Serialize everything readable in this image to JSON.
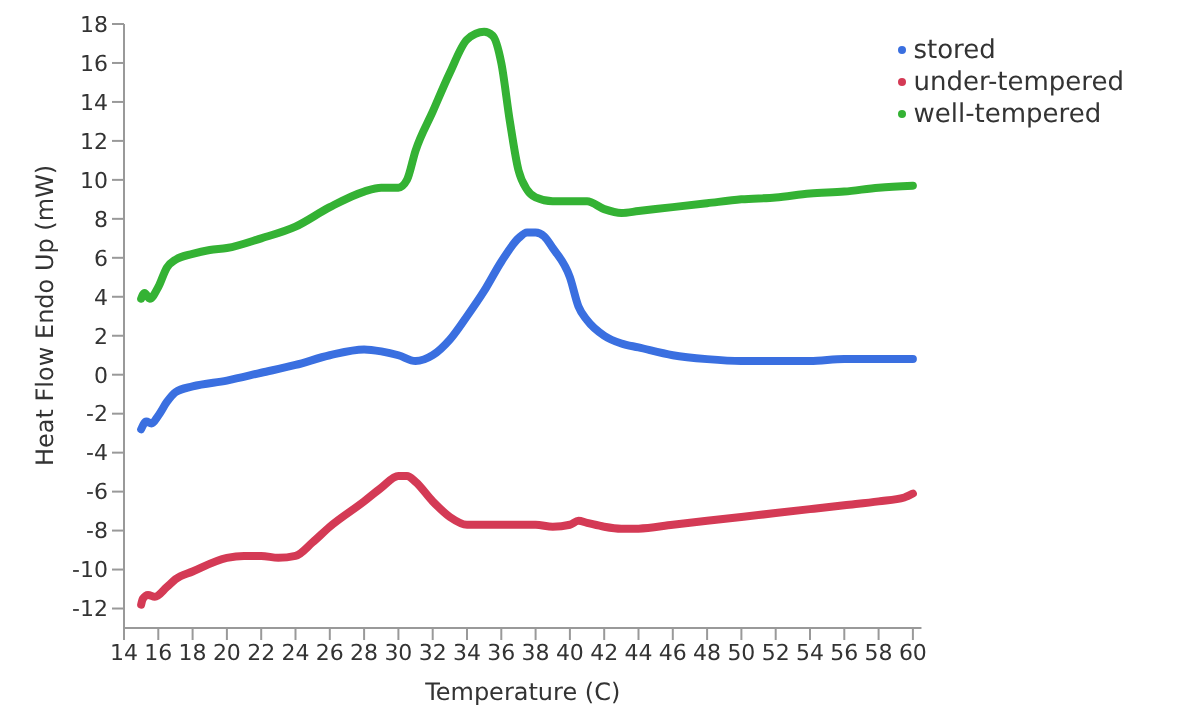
{
  "chart_data": {
    "type": "line",
    "xlabel": "Temperature (C)",
    "ylabel": "Heat Flow Endo Up (mW)",
    "xlim": [
      14,
      60.5
    ],
    "xticks": [
      14,
      16,
      18,
      20,
      22,
      24,
      26,
      28,
      30,
      32,
      34,
      36,
      38,
      40,
      42,
      44,
      46,
      48,
      50,
      52,
      54,
      56,
      58,
      60
    ],
    "ylim": [
      -13,
      18
    ],
    "yticks": [
      -12,
      -10,
      -8,
      -6,
      -4,
      -2,
      0,
      2,
      4,
      6,
      8,
      10,
      12,
      14,
      16,
      18
    ],
    "grid": false,
    "legend": "top right",
    "marker": "none",
    "line_style": "solid",
    "series": [
      {
        "name": "stored",
        "color": "#3a6fe0",
        "x": [
          15,
          15.3,
          15.6,
          16,
          16.5,
          17,
          18,
          20,
          22,
          24,
          26,
          28,
          29,
          30,
          31,
          32,
          33,
          34,
          35,
          36,
          37,
          37.5,
          38,
          38.5,
          39,
          40,
          40.5,
          41,
          42,
          43,
          44,
          46,
          48,
          50,
          52,
          54,
          56,
          58,
          60
        ],
        "values": [
          -2.8,
          -2.4,
          -2.5,
          -2.1,
          -1.4,
          -0.9,
          -0.6,
          -0.3,
          0.1,
          0.5,
          1.0,
          1.3,
          1.2,
          1.0,
          0.7,
          1.0,
          1.8,
          3.0,
          4.3,
          5.8,
          7.0,
          7.3,
          7.3,
          7.1,
          6.5,
          5.0,
          3.5,
          2.8,
          2.0,
          1.6,
          1.4,
          1.0,
          0.8,
          0.7,
          0.7,
          0.7,
          0.8,
          0.8,
          0.8
        ]
      },
      {
        "name": "under-tempered",
        "color": "#d43a55",
        "x": [
          15,
          15.1,
          15.4,
          15.8,
          16.5,
          17,
          18,
          20,
          21,
          22,
          23,
          24,
          25,
          26,
          28,
          29,
          30,
          30.5,
          31,
          32,
          33,
          34,
          36,
          38,
          39,
          40,
          40.5,
          41,
          42,
          43,
          44,
          46,
          48,
          50,
          52,
          54,
          56,
          58,
          59.5,
          60
        ],
        "values": [
          -11.8,
          -11.5,
          -11.3,
          -11.4,
          -10.9,
          -10.5,
          -10.1,
          -9.4,
          -9.3,
          -9.3,
          -9.4,
          -9.3,
          -8.6,
          -7.8,
          -6.5,
          -5.8,
          -5.2,
          -5.2,
          -5.5,
          -6.5,
          -7.3,
          -7.7,
          -7.7,
          -7.7,
          -7.8,
          -7.7,
          -7.5,
          -7.6,
          -7.8,
          -7.9,
          -7.9,
          -7.7,
          -7.5,
          -7.3,
          -7.1,
          -6.9,
          -6.7,
          -6.5,
          -6.3,
          -6.1
        ]
      },
      {
        "name": "well-tempered",
        "color": "#34b234",
        "x": [
          15,
          15.2,
          15.5,
          16,
          16.5,
          17,
          18,
          19,
          20,
          22,
          24,
          26,
          28,
          29,
          30,
          30.5,
          31,
          32,
          33,
          34,
          35,
          35.5,
          36,
          36.5,
          37,
          37.5,
          38,
          39,
          40,
          41,
          42,
          43,
          44,
          46,
          48,
          50,
          52,
          54,
          56,
          58,
          60
        ],
        "values": [
          3.9,
          4.2,
          3.9,
          4.5,
          5.5,
          5.9,
          6.2,
          6.4,
          6.5,
          7.0,
          7.6,
          8.6,
          9.4,
          9.6,
          9.6,
          10,
          11.5,
          13.5,
          15.5,
          17.2,
          17.6,
          17.4,
          16,
          13,
          10.5,
          9.5,
          9.1,
          8.9,
          8.9,
          8.9,
          8.5,
          8.3,
          8.4,
          8.6,
          8.8,
          9.0,
          9.1,
          9.3,
          9.4,
          9.6,
          9.7
        ]
      }
    ]
  }
}
